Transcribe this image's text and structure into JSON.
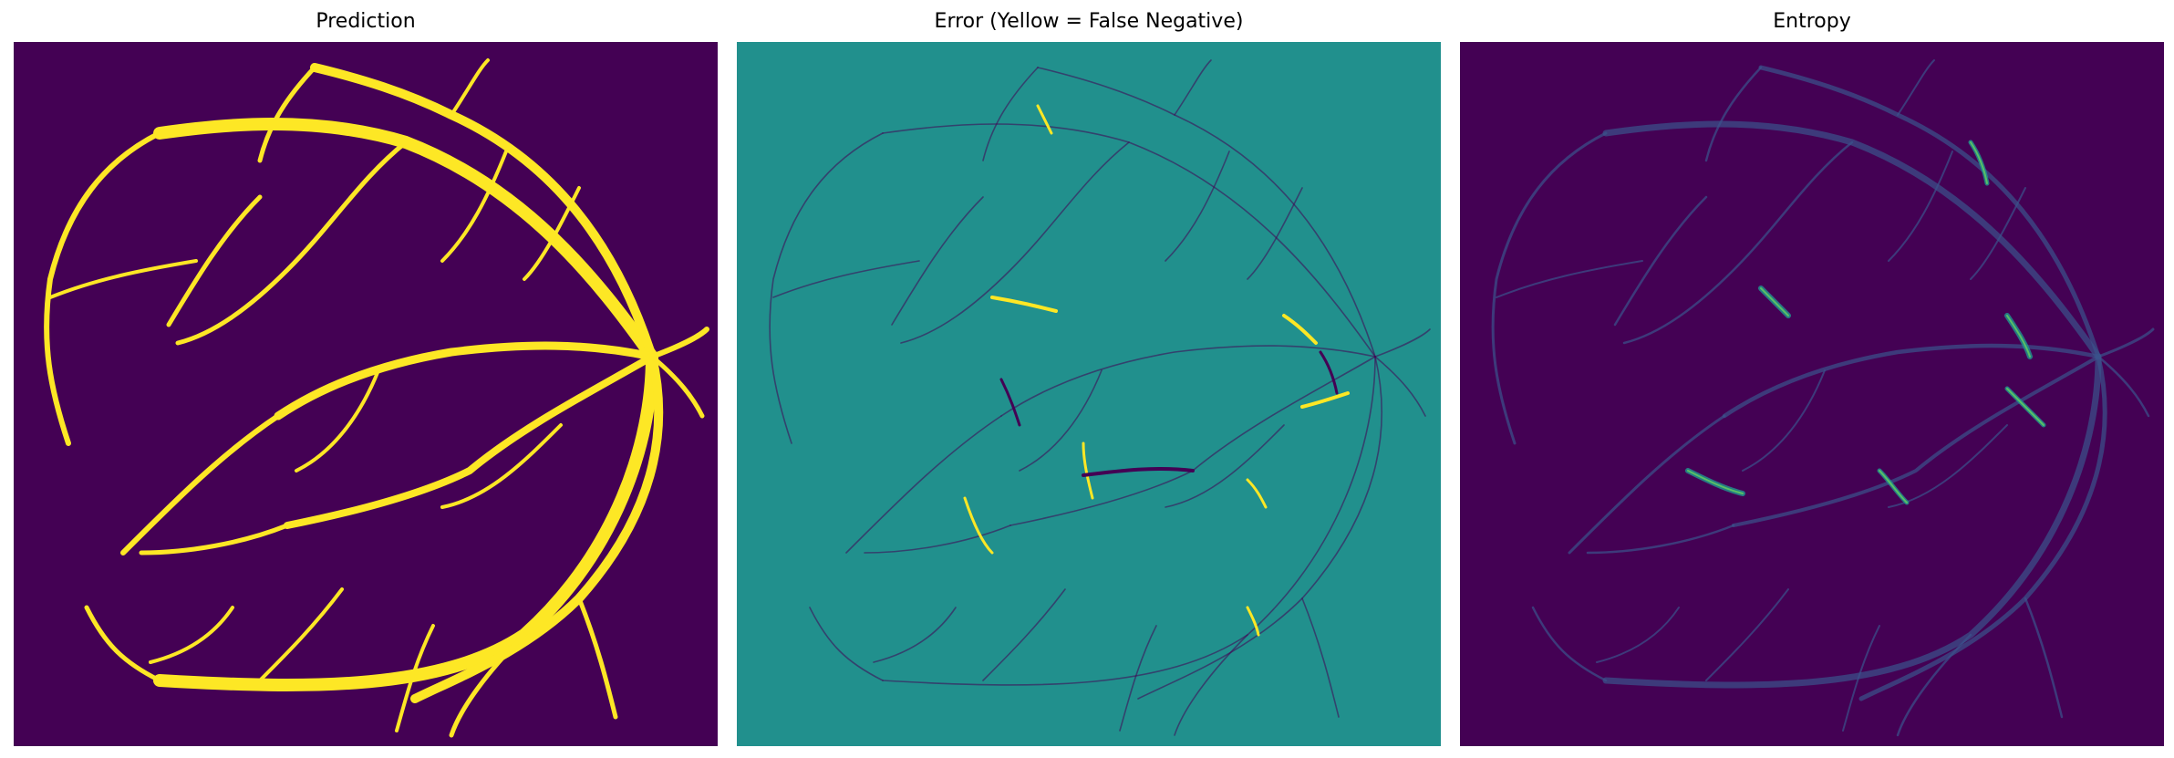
{
  "panels": [
    {
      "title": "Prediction",
      "image_kind": "vessel-segmentation-binary-mask",
      "colors": {
        "background": "#440154",
        "vessel": "#fde725"
      }
    },
    {
      "title": "Error (Yellow = False Negative)",
      "image_kind": "vessel-segmentation-error-map",
      "colors": {
        "background": "#21908d",
        "false_negative": "#fde725",
        "false_positive": "#440154"
      }
    },
    {
      "title": "Entropy",
      "image_kind": "vessel-entropy-heatmap",
      "colors": {
        "background": "#440154",
        "low": "#3b528b",
        "mid": "#21908d",
        "high": "#5ec962"
      }
    }
  ]
}
